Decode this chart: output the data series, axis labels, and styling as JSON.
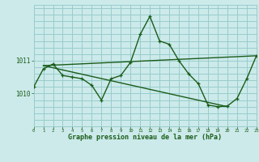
{
  "title": "Graphe pression niveau de la mer (hPa)",
  "background_color": "#cceaea",
  "grid_color": "#99cccc",
  "line_color": "#1a5c1a",
  "x_values": [
    0,
    1,
    2,
    3,
    4,
    5,
    6,
    7,
    8,
    9,
    10,
    11,
    12,
    13,
    14,
    15,
    16,
    17,
    18,
    19,
    20,
    21,
    22,
    23
  ],
  "main_line": [
    1010.2,
    1010.75,
    1010.9,
    1010.55,
    1010.5,
    1010.45,
    1010.25,
    1009.8,
    1010.45,
    1010.55,
    1010.95,
    1011.8,
    1012.35,
    1011.6,
    1011.5,
    1011.0,
    1010.6,
    1010.3,
    1009.65,
    1009.6,
    1009.62,
    1009.85,
    1010.45,
    1011.15
  ],
  "trend1_x": [
    1,
    23
  ],
  "trend1_y": [
    1010.85,
    1011.15
  ],
  "trend2_x": [
    1,
    20
  ],
  "trend2_y": [
    1010.85,
    1009.6
  ],
  "ylim": [
    1009.0,
    1012.7
  ],
  "yticks": [
    1010.0,
    1011.0
  ],
  "ytick_labels": [
    "1010",
    "1011"
  ],
  "xlim": [
    0,
    23
  ],
  "xticks": [
    0,
    1,
    2,
    3,
    4,
    5,
    6,
    7,
    8,
    9,
    10,
    11,
    12,
    13,
    14,
    15,
    16,
    17,
    18,
    19,
    20,
    21,
    22,
    23
  ]
}
